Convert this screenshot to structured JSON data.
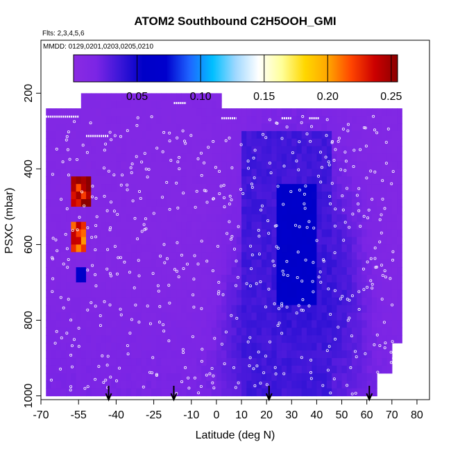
{
  "chart_data": {
    "type": "heatmap",
    "title": "ATOM2 Southbound C2H5OOH_GMI",
    "subtitle_flights": "Flts: 2,3,4,5,6",
    "subtitle_dates": "MMDD: 0129,0201,0203,0205,0210",
    "xlabel": "Latitude (deg N)",
    "ylabel": "PSXC (mbar)",
    "xlim": [
      -70,
      85
    ],
    "ylim": [
      1010,
      60
    ],
    "x_ticks": [
      -70,
      -55,
      -40,
      -25,
      -10,
      0,
      10,
      20,
      30,
      40,
      50,
      60,
      70,
      80
    ],
    "x_tick_labels": [
      "-70",
      "-55",
      "-40",
      "-25",
      "-10",
      "0",
      "10",
      "20",
      "30",
      "40",
      "50",
      "60",
      "70",
      "80"
    ],
    "y_ticks": [
      200,
      400,
      600,
      800,
      1000
    ],
    "y_tick_labels": [
      "200",
      "400",
      "600",
      "800",
      "1000"
    ],
    "colorbar": {
      "min": 0.0,
      "max": 0.255,
      "ticks": [
        0.05,
        0.1,
        0.15,
        0.2,
        0.25
      ],
      "tick_labels": [
        "0.05",
        "0.10",
        "0.15",
        "0.20",
        "0.25"
      ]
    },
    "colormap": [
      "#8a2be2",
      "#7b25e5",
      "#3b16d8",
      "#0000c8",
      "#0000cd",
      "#1e63ff",
      "#00bfff",
      "#9fd8ff",
      "#ffffff",
      "#ffff99",
      "#ffd700",
      "#ffa500",
      "#ff4500",
      "#cc0000",
      "#8b0000"
    ],
    "data_extent": {
      "lat": [
        -68,
        73
      ],
      "pressure": [
        200,
        1000
      ]
    },
    "field_summary": "Background about 0.01; a band of elevated values (0.03-0.05) between 10 and 60 deg N at 300-1000 mbar; isolated maxima near -55 deg N at about 450 and 580 mbar reaching about 0.25.",
    "features": [
      {
        "lat": [
          -58,
          -50
        ],
        "pressure": [
          420,
          500
        ],
        "value": 0.24
      },
      {
        "lat": [
          -57,
          -52
        ],
        "pressure": [
          550,
          610
        ],
        "value": 0.22
      },
      {
        "lat": [
          -56,
          -52
        ],
        "pressure": [
          660,
          700
        ],
        "value": 0.06
      },
      {
        "lat": [
          10,
          45
        ],
        "pressure": [
          300,
          1000
        ],
        "value": 0.035
      },
      {
        "lat": [
          25,
          40
        ],
        "pressure": [
          450,
          760
        ],
        "value": 0.06
      }
    ],
    "profile_markers_lat": [
      -43,
      -17,
      21,
      61
    ]
  }
}
